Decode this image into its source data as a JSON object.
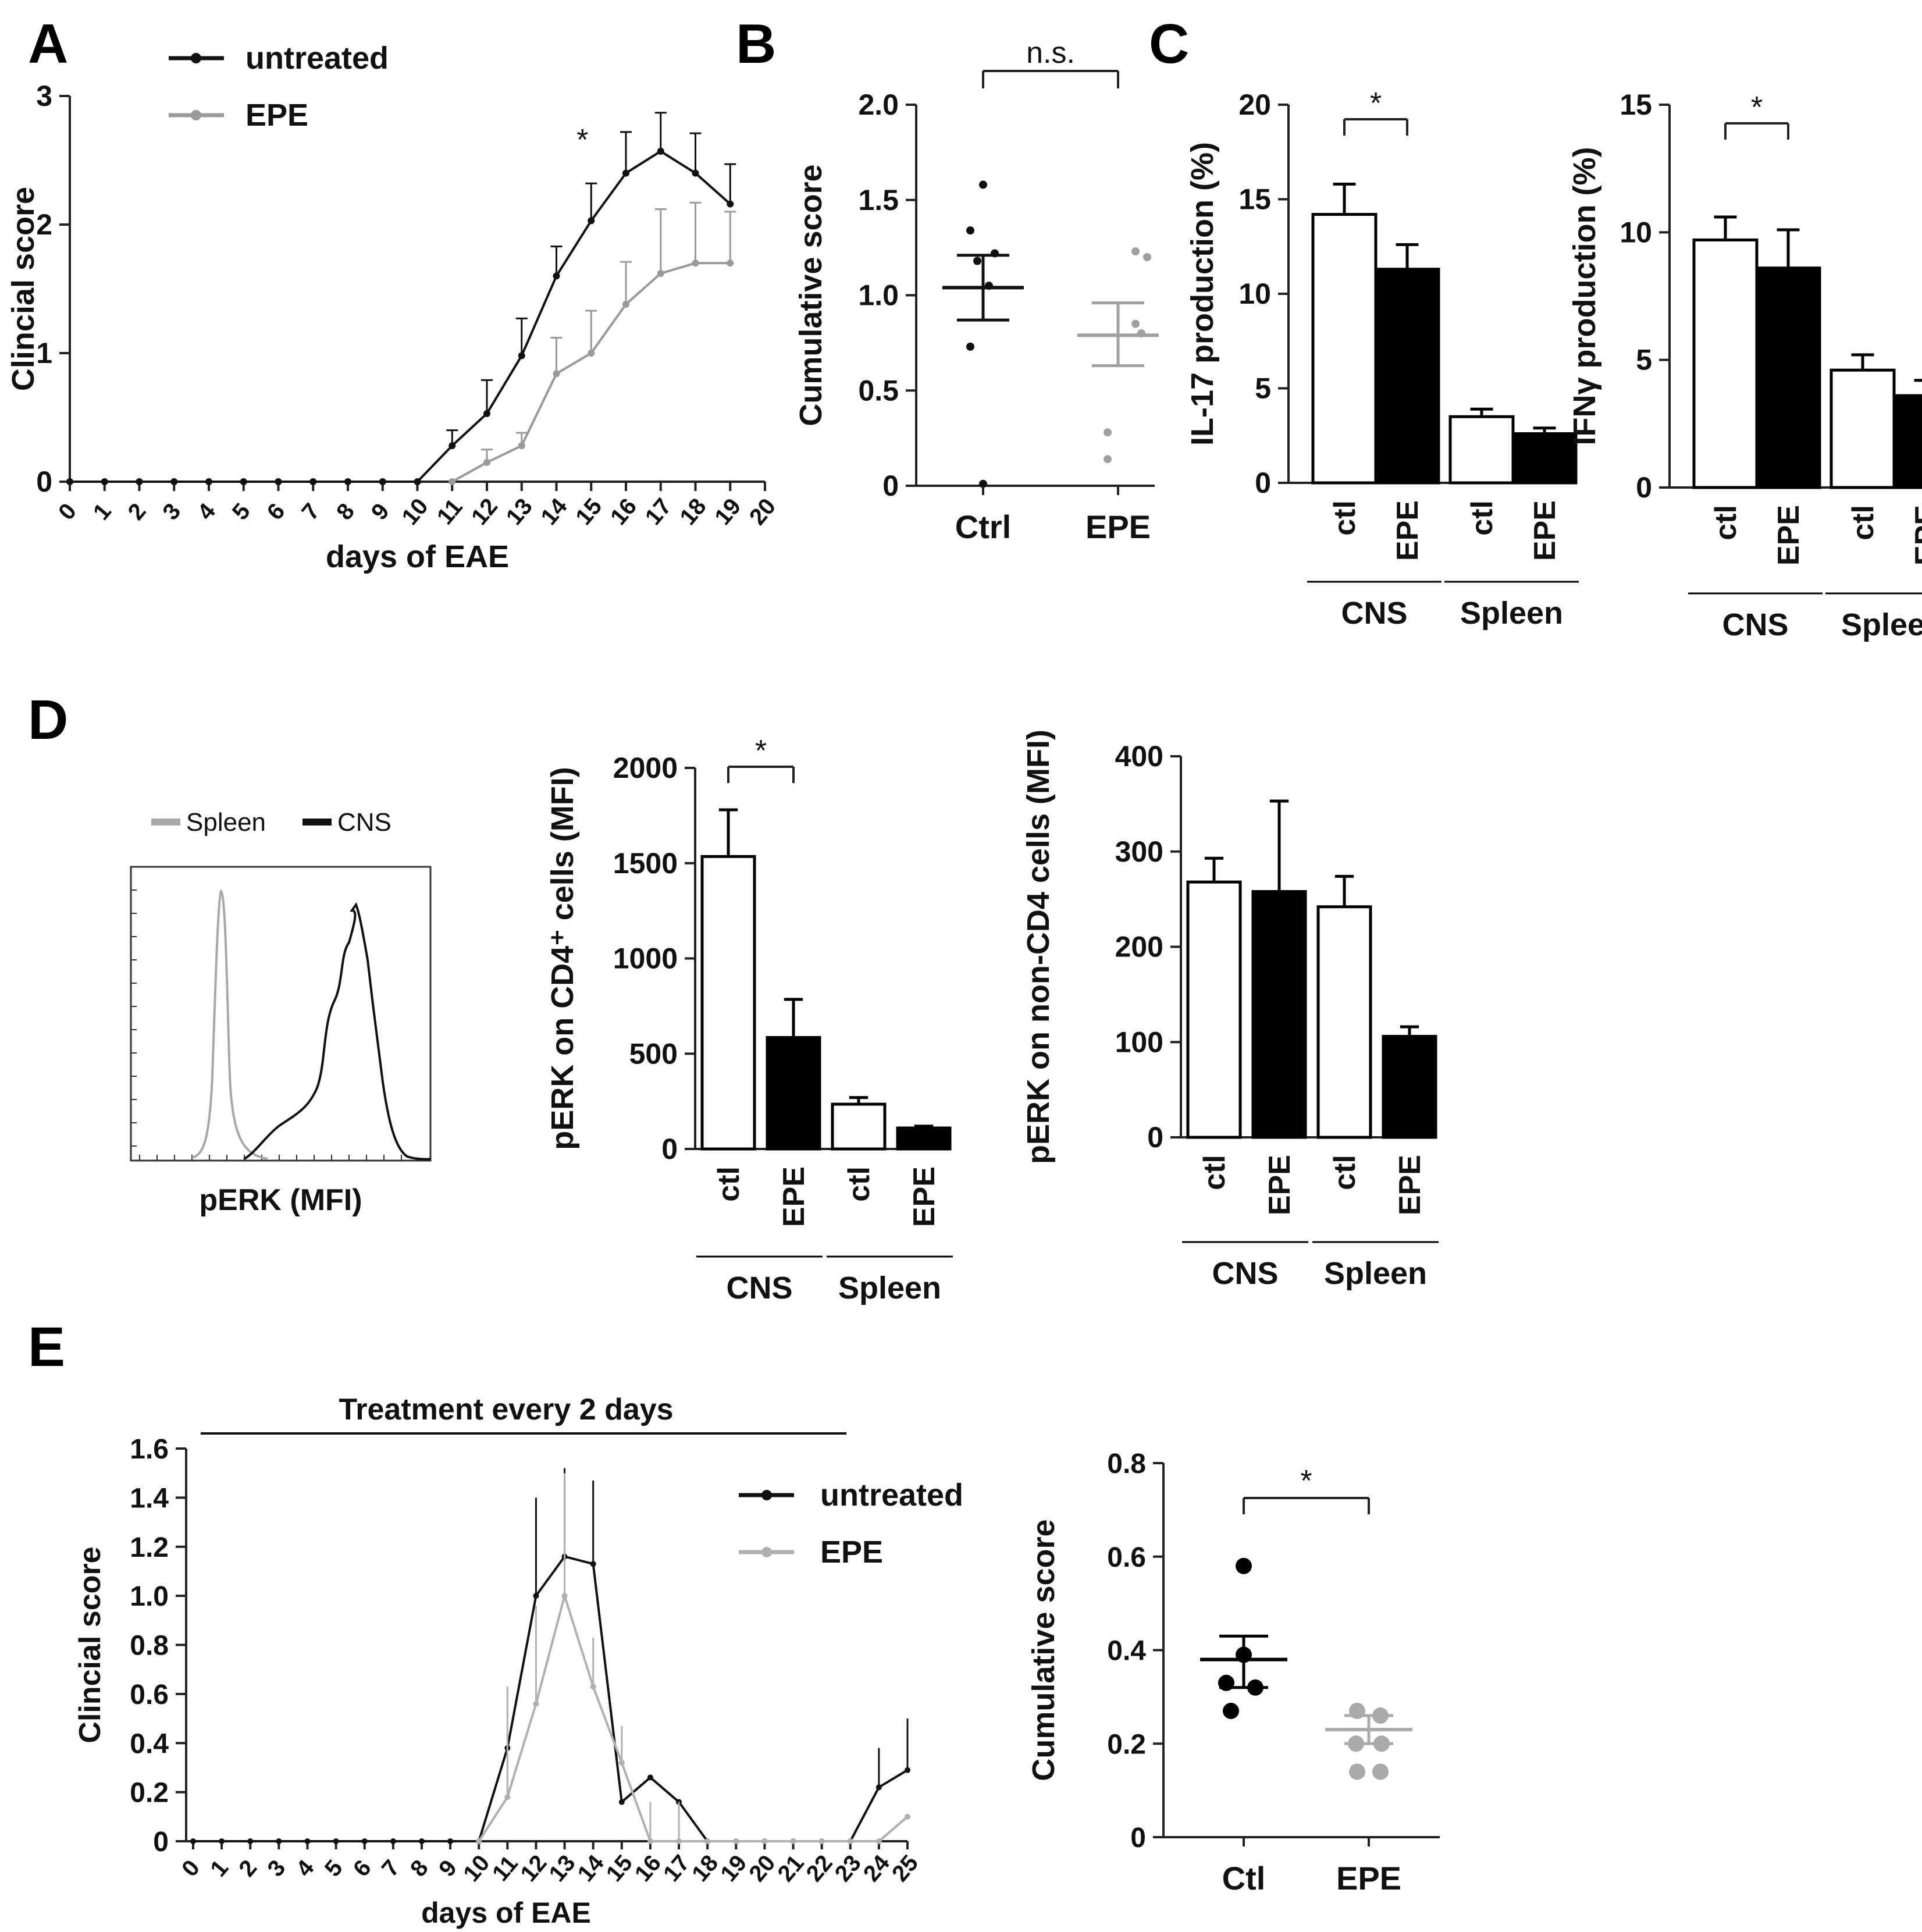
{
  "panels": {
    "A": "A",
    "B": "B",
    "C": "C",
    "D": "D",
    "E": "E"
  },
  "chart_data": [
    {
      "id": "A",
      "type": "line",
      "xlabel": "days of EAE",
      "ylabel": "Clincial score",
      "xlim": [
        0,
        20
      ],
      "ylim": [
        0,
        3
      ],
      "xticks": [
        "0",
        "1",
        "2",
        "3",
        "4",
        "5",
        "6",
        "7",
        "8",
        "9",
        "10",
        "11",
        "12",
        "13",
        "14",
        "15",
        "16",
        "17",
        "18",
        "19",
        "20"
      ],
      "yticks": [
        "0",
        "1",
        "2",
        "3"
      ],
      "series": [
        {
          "name": "untreated",
          "color": "#111111",
          "x": [
            0,
            1,
            2,
            3,
            4,
            5,
            6,
            7,
            8,
            9,
            10,
            11,
            12,
            13,
            14,
            15,
            16,
            17,
            18,
            19
          ],
          "values": [
            0,
            0,
            0,
            0,
            0,
            0,
            0,
            0,
            0,
            0,
            0,
            0.28,
            0.53,
            0.98,
            1.6,
            2.03,
            2.4,
            2.57,
            2.4,
            2.16
          ],
          "err": [
            0,
            0,
            0,
            0,
            0,
            0,
            0,
            0,
            0,
            0,
            0,
            0.12,
            0.26,
            0.29,
            0.23,
            0.29,
            0.32,
            0.3,
            0.31,
            0.31
          ]
        },
        {
          "name": "EPE",
          "color": "#9a9a9a",
          "x": [
            11,
            12,
            13,
            14,
            15,
            16,
            17,
            18,
            19
          ],
          "values": [
            0,
            0.15,
            0.28,
            0.84,
            1,
            1.38,
            1.62,
            1.7,
            1.7
          ],
          "err": [
            0,
            0.1,
            0.1,
            0.28,
            0.33,
            0.33,
            0.5,
            0.47,
            0.4
          ]
        }
      ],
      "annotations": [
        {
          "text": "*",
          "x": 15
        }
      ]
    },
    {
      "id": "B",
      "type": "scatter",
      "ylabel": "Cumulative score",
      "categories": [
        "Ctrl",
        "EPE"
      ],
      "ylim": [
        0,
        2.0
      ],
      "yticks": [
        "0",
        "0.5",
        "1.0",
        "1.5",
        "2.0"
      ],
      "series": [
        {
          "name": "Ctrl",
          "color": "#111111",
          "points": [
            1.58,
            1.34,
            1.22,
            1.18,
            1.05,
            0.73,
            0.01
          ],
          "mean": 1.04,
          "sem": [
            0.87,
            1.21
          ]
        },
        {
          "name": "EPE",
          "color": "#a0a0a0",
          "points": [
            1.23,
            1.2,
            0.85,
            0.8,
            0.28,
            0.14
          ],
          "mean": 0.79,
          "sem": [
            0.63,
            0.96
          ]
        }
      ],
      "annotations": [
        {
          "text": "n.s."
        }
      ]
    },
    {
      "id": "C1",
      "type": "bar",
      "ylabel": "IL-17 production (%)",
      "categories": [
        "ctl",
        "EPE",
        "ctl",
        "EPE"
      ],
      "groups": [
        "CNS",
        "Spleen"
      ],
      "ylim": [
        0,
        20
      ],
      "yticks": [
        "0",
        "5",
        "10",
        "15",
        "20"
      ],
      "values": [
        14.2,
        11.3,
        3.5,
        2.6
      ],
      "err": [
        1.6,
        1.3,
        0.4,
        0.3
      ],
      "fills": [
        "#ffffff",
        "#000000",
        "#ffffff",
        "#000000"
      ],
      "annotations": [
        {
          "text": "*"
        }
      ]
    },
    {
      "id": "C2",
      "type": "bar",
      "ylabel": "IFNγ production (%)",
      "categories": [
        "ctl",
        "EPE",
        "ctl",
        "EPE"
      ],
      "groups": [
        "CNS",
        "Spleen"
      ],
      "ylim": [
        0,
        15
      ],
      "yticks": [
        "0",
        "5",
        "10",
        "15"
      ],
      "values": [
        9.7,
        8.6,
        4.6,
        3.6
      ],
      "err": [
        0.9,
        1.5,
        0.6,
        0.6
      ],
      "fills": [
        "#ffffff",
        "#000000",
        "#ffffff",
        "#000000"
      ],
      "annotations": [
        {
          "text": "*"
        }
      ]
    },
    {
      "id": "D0",
      "type": "line",
      "xlabel": "pERK (MFI)",
      "legend": [
        "Spleen",
        "CNS"
      ],
      "colors": [
        "#a8a8a8",
        "#111111"
      ]
    },
    {
      "id": "D1",
      "type": "bar",
      "ylabel": "pERK on CD4⁺ cells (MFI)",
      "categories": [
        "ctl",
        "EPE",
        "ctl",
        "EPE"
      ],
      "groups": [
        "CNS",
        "Spleen"
      ],
      "ylim": [
        0,
        2000
      ],
      "yticks": [
        "0",
        "500",
        "1000",
        "1500",
        "2000"
      ],
      "values": [
        1535,
        585,
        235,
        110
      ],
      "err": [
        245,
        200,
        35,
        10
      ],
      "fills": [
        "#ffffff",
        "#000000",
        "#ffffff",
        "#000000"
      ],
      "annotations": [
        {
          "text": "*"
        }
      ]
    },
    {
      "id": "D2",
      "type": "bar",
      "ylabel": "pERK on non-CD4 cells (MFI)",
      "categories": [
        "ctl",
        "EPE",
        "ctl",
        "EPE"
      ],
      "groups": [
        "CNS",
        "Spleen"
      ],
      "ylim": [
        0,
        400
      ],
      "yticks": [
        "0",
        "100",
        "200",
        "300",
        "400"
      ],
      "values": [
        268,
        258,
        242,
        106
      ],
      "err": [
        25,
        95,
        32,
        10
      ],
      "fills": [
        "#ffffff",
        "#000000",
        "#ffffff",
        "#000000"
      ]
    },
    {
      "id": "E1",
      "type": "line",
      "title": "Treatment every 2 days",
      "xlabel": "days of EAE",
      "ylabel": "Clincial score",
      "xlim": [
        0,
        25
      ],
      "ylim": [
        0,
        1.6
      ],
      "xticks": [
        "0",
        "1",
        "2",
        "3",
        "4",
        "5",
        "6",
        "7",
        "8",
        "9",
        "10",
        "11",
        "12",
        "13",
        "14",
        "15",
        "16",
        "17",
        "18",
        "19",
        "20",
        "21",
        "22",
        "23",
        "24",
        "25"
      ],
      "yticks": [
        "0",
        "0.2",
        "0.4",
        "0.6",
        "0.8",
        "1.0",
        "1.2",
        "1.4",
        "1.6"
      ],
      "series": [
        {
          "name": "untreated",
          "color": "#111111",
          "x": [
            0,
            1,
            2,
            3,
            4,
            5,
            6,
            7,
            8,
            9,
            10,
            11,
            12,
            13,
            14,
            15,
            16,
            17,
            18,
            19,
            20,
            21,
            22,
            23,
            24,
            25
          ],
          "values": [
            0,
            0,
            0,
            0,
            0,
            0,
            0,
            0,
            0,
            0,
            0,
            0.38,
            1.0,
            1.16,
            1.13,
            0.16,
            0.26,
            0.16,
            0,
            0,
            0,
            0,
            0,
            0,
            0.22,
            0.29
          ],
          "err": [
            0,
            0,
            0,
            0,
            0,
            0,
            0,
            0,
            0,
            0,
            0,
            0,
            0.4,
            0.36,
            0.34,
            0,
            0,
            0,
            0,
            0,
            0,
            0,
            0,
            0,
            0.16,
            0.21
          ]
        },
        {
          "name": "EPE",
          "color": "#b0b0b0",
          "x": [
            10,
            11,
            12,
            13,
            14,
            15,
            16,
            17,
            18,
            19,
            20,
            21,
            22,
            23,
            24,
            25
          ],
          "values": [
            0,
            0.18,
            0.56,
            1.0,
            0.63,
            0.32,
            0,
            0,
            0,
            0,
            0,
            0,
            0,
            0,
            0,
            0.1
          ],
          "err": [
            0,
            0.45,
            0.4,
            0.5,
            0.2,
            0.15,
            0.16,
            0.16,
            0,
            0,
            0,
            0,
            0,
            0,
            0,
            0
          ]
        }
      ]
    },
    {
      "id": "E2",
      "type": "scatter",
      "ylabel": "Cumulative score",
      "categories": [
        "Ctl",
        "EPE"
      ],
      "ylim": [
        0,
        0.8
      ],
      "yticks": [
        "0",
        "0.2",
        "0.4",
        "0.6",
        "0.8"
      ],
      "series": [
        {
          "name": "Ctl",
          "color": "#000000",
          "points": [
            0.58,
            0.39,
            0.33,
            0.32,
            0.27
          ],
          "mean": 0.38,
          "sem": [
            0.32,
            0.43
          ]
        },
        {
          "name": "EPE",
          "color": "#aaaaaa",
          "points": [
            0.27,
            0.26,
            0.2,
            0.2,
            0.14,
            0.14
          ],
          "mean": 0.23,
          "sem": [
            0.2,
            0.26
          ]
        }
      ],
      "annotations": [
        {
          "text": "*"
        }
      ]
    }
  ]
}
